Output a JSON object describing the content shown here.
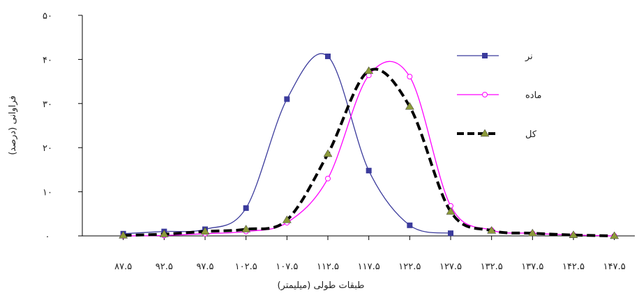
{
  "chart_data": {
    "type": "line",
    "x_label": "طبقات طولی (میلیمتر)",
    "y_label": "فراوانی (درصد)",
    "x": [
      87.5,
      92.5,
      97.5,
      102.5,
      107.5,
      112.5,
      117.5,
      122.5,
      127.5,
      132.5,
      137.5,
      142.5,
      147.5
    ],
    "xlim": [
      82.5,
      150
    ],
    "xticks": [
      {
        "value": 87.5,
        "label": "۸۷.۵"
      },
      {
        "value": 92.5,
        "label": "۹۲.۵"
      },
      {
        "value": 97.5,
        "label": "۹۷.۵"
      },
      {
        "value": 102.5,
        "label": "۱۰۲.۵"
      },
      {
        "value": 107.5,
        "label": "۱۰۷.۵"
      },
      {
        "value": 112.5,
        "label": "۱۱۲.۵"
      },
      {
        "value": 117.5,
        "label": "۱۱۷.۵"
      },
      {
        "value": 122.5,
        "label": "۱۲۲.۵"
      },
      {
        "value": 127.5,
        "label": "۱۲۷.۵"
      },
      {
        "value": 132.5,
        "label": "۱۳۲.۵"
      },
      {
        "value": 137.5,
        "label": "۱۳۷.۵"
      },
      {
        "value": 142.5,
        "label": "۱۴۲.۵"
      },
      {
        "value": 147.5,
        "label": "۱۴۷.۵"
      }
    ],
    "ylim": [
      0,
      50
    ],
    "yticks": [
      {
        "value": 0,
        "label": "۰"
      },
      {
        "value": 10,
        "label": "۱۰"
      },
      {
        "value": 20,
        "label": "۲۰"
      },
      {
        "value": 30,
        "label": "۳۰"
      },
      {
        "value": 40,
        "label": "۴۰"
      },
      {
        "value": 50,
        "label": "۵۰"
      }
    ],
    "grid": false,
    "legend": "upper-right",
    "series": [
      {
        "name": "نر",
        "color": "#3b3b9c",
        "marker": "square",
        "dashed": false,
        "values": [
          0.5,
          1,
          1.5,
          6.3,
          31,
          40.7,
          14.8,
          2.4,
          0.6,
          null,
          null,
          null,
          null
        ]
      },
      {
        "name": "ماده",
        "color": "#ff00ff",
        "marker": "circle",
        "dashed": false,
        "values": [
          0,
          0.1,
          0.5,
          1,
          3,
          13,
          36.4,
          36.1,
          6.8,
          1.3,
          0.6,
          0.2,
          0
        ]
      },
      {
        "name": "کل",
        "color": "#000000",
        "marker_color": "#8c9a3a",
        "marker": "triangle",
        "dashed": true,
        "values": [
          0.1,
          0.4,
          1,
          1.5,
          3.6,
          18.6,
          37.4,
          29.3,
          5.5,
          1.2,
          0.6,
          0.2,
          0
        ]
      }
    ]
  }
}
